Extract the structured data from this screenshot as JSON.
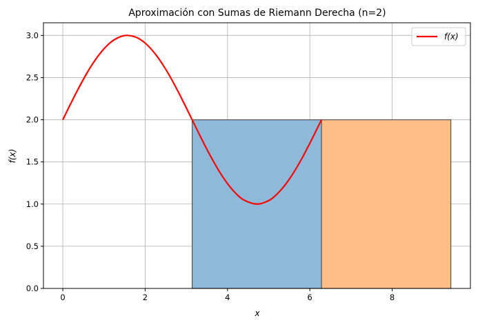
{
  "chart_data": {
    "type": "line",
    "title": "Aproximación con Sumas de Riemann Derecha (n=2)",
    "xlabel": "x",
    "ylabel": "f(x)",
    "xlim": [
      -0.47,
      9.9
    ],
    "ylim": [
      0,
      3.15
    ],
    "xticks": [
      0,
      2,
      4,
      6,
      8
    ],
    "xtick_labels": [
      "0",
      "2",
      "4",
      "6",
      "8"
    ],
    "yticks": [
      0.0,
      0.5,
      1.0,
      1.5,
      2.0,
      2.5,
      3.0
    ],
    "ytick_labels": [
      "0.0",
      "0.5",
      "1.0",
      "1.5",
      "2.0",
      "2.5",
      "3.0"
    ],
    "grid": true,
    "legend_position": "top-right",
    "series": [
      {
        "name": "f(x)",
        "color": "#ff0000",
        "x": [
          0,
          0.2,
          0.4,
          0.6,
          0.8,
          1.0,
          1.2,
          1.4,
          1.5708,
          1.8,
          2.0,
          2.2,
          2.4,
          2.6,
          2.8,
          3.0,
          3.1416,
          3.4,
          3.6,
          3.8,
          4.0,
          4.2,
          4.4,
          4.7124,
          5.0,
          5.2,
          5.4,
          5.6,
          5.8,
          6.0,
          6.2832
        ],
        "y": [
          2.0,
          2.199,
          2.389,
          2.565,
          2.717,
          2.841,
          2.932,
          2.985,
          3.0,
          2.974,
          2.909,
          2.808,
          2.675,
          2.516,
          2.335,
          2.141,
          2.0,
          1.745,
          1.558,
          1.388,
          1.243,
          1.128,
          1.048,
          1.0,
          1.041,
          1.117,
          1.228,
          1.369,
          1.535,
          1.721,
          2.0
        ]
      }
    ],
    "rectangles": [
      {
        "x_start": 3.1416,
        "x_end": 6.2832,
        "height": 2.0,
        "color": "#8fb9d9",
        "edge": "#555555"
      },
      {
        "x_start": 6.2832,
        "x_end": 9.4248,
        "height": 2.0,
        "color": "#ffbe86",
        "edge": "#555555"
      }
    ]
  }
}
